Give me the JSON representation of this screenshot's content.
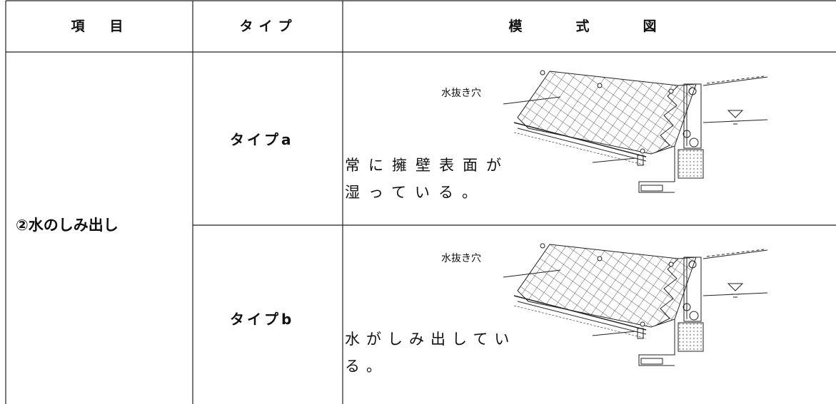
{
  "header": {
    "columns": [
      "項　目",
      "タイプ",
      "模　式　図"
    ]
  },
  "table": {
    "item": "②水のしみ出し",
    "rows": [
      {
        "type": "タイプa",
        "label": "水抜き穴",
        "description": [
          "常に擁壁表面が",
          "湿っている。"
        ]
      },
      {
        "type": "タイプb",
        "label": "水抜き穴",
        "description": [
          "水がしみ出してい",
          "る。"
        ]
      }
    ]
  }
}
